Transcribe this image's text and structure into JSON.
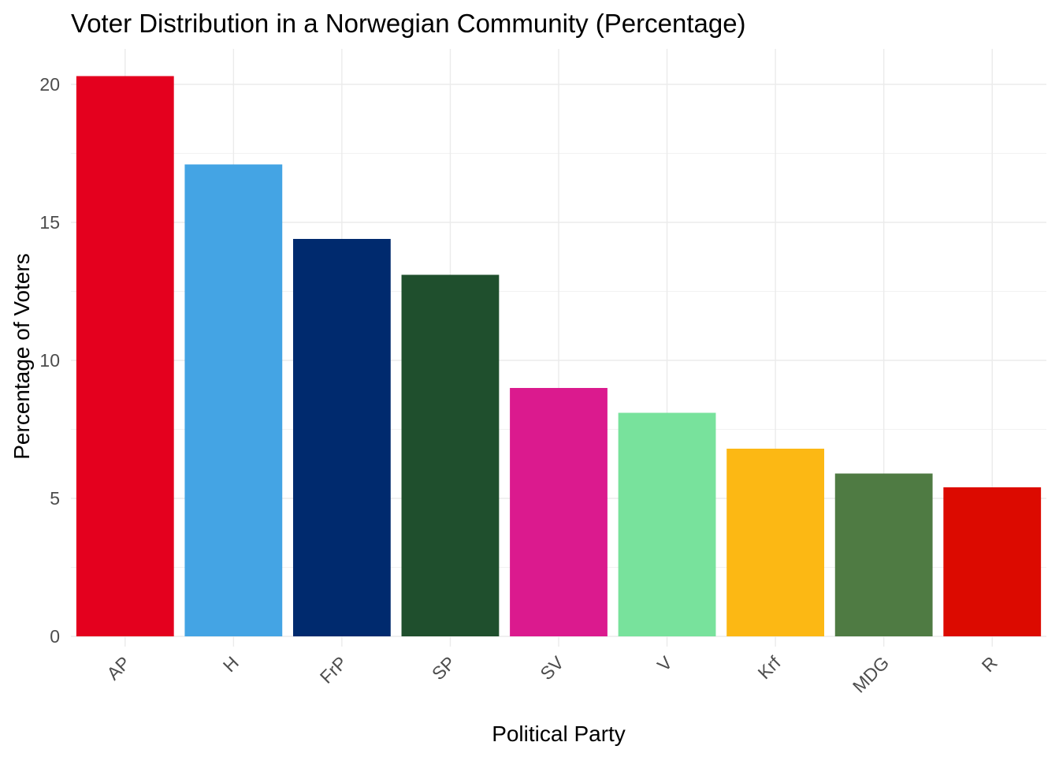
{
  "chart_data": {
    "type": "bar",
    "title": "Voter Distribution in a Norwegian Community (Percentage)",
    "xlabel": "Political Party",
    "ylabel": "Percentage of Voters",
    "categories": [
      "AP",
      "H",
      "FrP",
      "SP",
      "SV",
      "V",
      "Krf",
      "MDG",
      "R"
    ],
    "values": [
      20.3,
      17.1,
      14.4,
      13.1,
      9.0,
      8.1,
      6.8,
      5.9,
      5.4
    ],
    "colors": [
      "#E4001E",
      "#44A4E4",
      "#002A6E",
      "#1F4F2D",
      "#DB1A8E",
      "#78E29C",
      "#FCB814",
      "#4F7B43",
      "#DC0A00"
    ],
    "yticks": [
      0,
      5,
      10,
      15,
      20
    ],
    "ylim": [
      0,
      21.3
    ],
    "x_tick_rotation": "45 degrees",
    "grid": true,
    "legend": "none"
  }
}
